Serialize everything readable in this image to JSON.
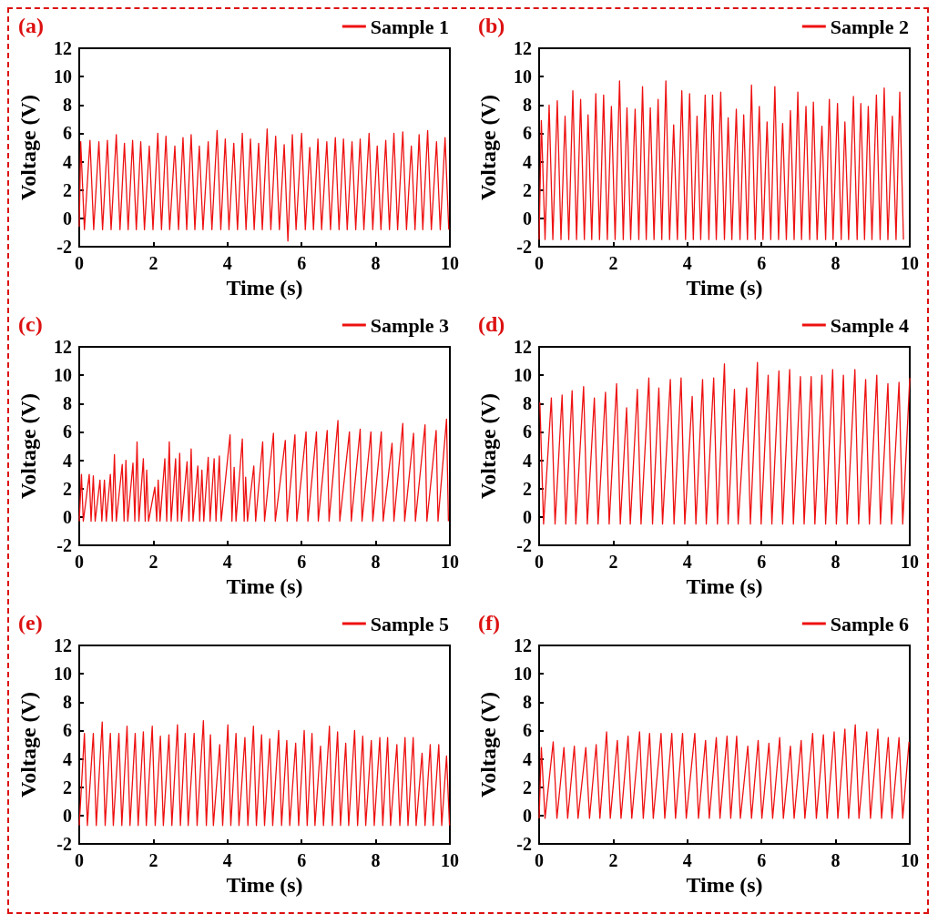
{
  "chart_data": [
    {
      "type": "line",
      "title": "(a)",
      "xlabel": "Time (s)",
      "ylabel": "Voltage (V)",
      "xlim": [
        0,
        10
      ],
      "ylim": [
        -2,
        12
      ],
      "xticks": [
        0,
        2,
        4,
        6,
        8,
        10
      ],
      "yticks": [
        -2,
        0,
        2,
        4,
        6,
        8,
        10,
        12
      ],
      "legend": "top right",
      "series": [
        {
          "name": "Sample 1",
          "color": "#ee1111",
          "x": [
            0,
            0.04,
            0.14,
            0.29,
            0.39,
            0.53,
            0.63,
            0.76,
            0.86,
            1.0,
            1.1,
            1.22,
            1.32,
            1.44,
            1.54,
            1.66,
            1.76,
            1.89,
            1.99,
            2.12,
            2.22,
            2.34,
            2.44,
            2.58,
            2.68,
            2.8,
            2.9,
            3.02,
            3.12,
            3.24,
            3.34,
            3.48,
            3.58,
            3.72,
            3.82,
            3.94,
            4.04,
            4.17,
            4.27,
            4.4,
            4.5,
            4.62,
            4.72,
            4.84,
            4.94,
            5.07,
            5.17,
            5.3,
            5.4,
            5.53,
            5.63,
            5.75,
            5.85,
            6.0,
            6.1,
            6.22,
            6.32,
            6.44,
            6.54,
            6.68,
            6.78,
            6.91,
            7.01,
            7.13,
            7.23,
            7.36,
            7.46,
            7.58,
            7.68,
            7.82,
            7.92,
            8.04,
            8.14,
            8.27,
            8.37,
            8.49,
            8.59,
            8.73,
            8.83,
            8.96,
            9.06,
            9.17,
            9.27,
            9.4,
            9.5,
            9.64,
            9.74,
            9.87,
            9.97
          ],
          "values": [
            -0.6,
            5.4,
            -0.8,
            5.5,
            -0.8,
            5.4,
            -0.8,
            5.5,
            -0.8,
            5.9,
            -0.8,
            5.3,
            -0.8,
            5.5,
            -0.8,
            5.4,
            -0.8,
            5.1,
            -0.8,
            6.0,
            -0.8,
            5.8,
            -0.8,
            5.1,
            -0.8,
            5.7,
            -0.8,
            5.9,
            -0.8,
            5.1,
            -0.8,
            5.4,
            -0.8,
            6.2,
            -0.8,
            5.6,
            -0.8,
            5.3,
            -0.8,
            6.0,
            -0.8,
            5.6,
            -0.8,
            5.3,
            -0.8,
            6.3,
            -0.8,
            5.8,
            -0.8,
            5.2,
            -1.6,
            5.9,
            -0.8,
            6.0,
            -0.8,
            5.0,
            -0.8,
            5.6,
            -0.8,
            5.4,
            -0.8,
            5.7,
            -0.8,
            5.6,
            -0.8,
            5.4,
            -0.8,
            5.6,
            -0.8,
            6.0,
            -0.8,
            5.1,
            -0.8,
            5.5,
            -0.8,
            6.0,
            -0.8,
            6.1,
            -0.8,
            5.1,
            -0.8,
            5.9,
            -0.8,
            6.2,
            -0.8,
            5.4,
            -0.8,
            5.7,
            -0.8
          ]
        }
      ]
    },
    {
      "type": "line",
      "title": "(b)",
      "xlabel": "Time (s)",
      "ylabel": "Voltage (V)",
      "xlim": [
        0,
        10
      ],
      "ylim": [
        -2,
        12
      ],
      "xticks": [
        0,
        2,
        4,
        6,
        8,
        10
      ],
      "yticks": [
        -2,
        0,
        2,
        4,
        6,
        8,
        10,
        12
      ],
      "legend": "top right",
      "series": [
        {
          "name": "Sample 2",
          "color": "#ee1111",
          "x": [
            0,
            0.06,
            0.16,
            0.27,
            0.37,
            0.49,
            0.59,
            0.7,
            0.8,
            0.91,
            1.01,
            1.12,
            1.22,
            1.32,
            1.42,
            1.53,
            1.63,
            1.74,
            1.84,
            1.95,
            2.05,
            2.17,
            2.27,
            2.37,
            2.47,
            2.59,
            2.69,
            2.79,
            2.89,
            3.0,
            3.1,
            3.21,
            3.31,
            3.42,
            3.52,
            3.63,
            3.73,
            3.85,
            3.95,
            4.06,
            4.16,
            4.26,
            4.36,
            4.48,
            4.58,
            4.68,
            4.78,
            4.9,
            5.0,
            5.1,
            5.2,
            5.32,
            5.42,
            5.52,
            5.62,
            5.73,
            5.83,
            5.94,
            6.04,
            6.15,
            6.25,
            6.36,
            6.46,
            6.57,
            6.67,
            6.78,
            6.88,
            6.98,
            7.08,
            7.2,
            7.3,
            7.4,
            7.5,
            7.63,
            7.73,
            7.83,
            7.93,
            8.05,
            8.15,
            8.25,
            8.35,
            8.48,
            8.58,
            8.68,
            8.78,
            8.88,
            8.98,
            9.1,
            9.2,
            9.31,
            9.41,
            9.53,
            9.63,
            9.73,
            9.83
          ],
          "values": [
            -1.5,
            6.9,
            -1.5,
            8.0,
            -1.5,
            8.3,
            -1.5,
            7.2,
            -1.5,
            9.0,
            -1.5,
            8.4,
            -1.5,
            7.3,
            -1.5,
            8.8,
            -1.5,
            8.7,
            -1.5,
            7.9,
            -1.5,
            9.7,
            -1.5,
            7.8,
            -1.5,
            7.7,
            -1.5,
            9.3,
            -1.5,
            7.8,
            -1.5,
            8.4,
            -1.5,
            9.7,
            -1.5,
            6.6,
            -1.5,
            9.0,
            -1.5,
            8.8,
            -1.5,
            7.2,
            -1.5,
            8.7,
            -1.5,
            8.7,
            -1.5,
            8.9,
            -1.5,
            7.1,
            -1.5,
            7.7,
            -1.5,
            7.3,
            -1.5,
            9.4,
            -1.5,
            7.9,
            -1.5,
            6.8,
            -1.5,
            9.3,
            -1.5,
            6.7,
            -1.5,
            7.6,
            -1.5,
            8.9,
            -1.5,
            7.9,
            -1.5,
            8.2,
            -1.5,
            6.5,
            -1.5,
            8.4,
            -1.5,
            8.1,
            -1.5,
            6.8,
            -1.5,
            8.6,
            -1.5,
            8.1,
            -1.5,
            7.9,
            -1.5,
            8.7,
            -1.5,
            9.2,
            -1.5,
            7.2,
            -1.5,
            8.9,
            -1.5
          ]
        }
      ]
    },
    {
      "type": "line",
      "title": "(c)",
      "xlabel": "Time (s)",
      "ylabel": "Voltage (V)",
      "xlim": [
        0,
        10
      ],
      "ylim": [
        -2,
        12
      ],
      "xticks": [
        0,
        2,
        4,
        6,
        8,
        10
      ],
      "yticks": [
        -2,
        0,
        2,
        4,
        6,
        8,
        10,
        12
      ],
      "legend": "top right",
      "series": [
        {
          "name": "Sample 3",
          "color": "#ee1111",
          "x": [
            0,
            0.06,
            0.11,
            0.27,
            0.32,
            0.38,
            0.43,
            0.56,
            0.61,
            0.68,
            0.73,
            0.84,
            0.89,
            0.95,
            1.0,
            1.16,
            1.21,
            1.26,
            1.31,
            1.45,
            1.5,
            1.56,
            1.61,
            1.73,
            1.78,
            1.82,
            1.87,
            2.04,
            2.09,
            2.13,
            2.18,
            2.31,
            2.36,
            2.43,
            2.48,
            2.6,
            2.65,
            2.71,
            2.76,
            2.91,
            2.96,
            3.02,
            3.07,
            3.2,
            3.25,
            3.31,
            3.36,
            3.48,
            3.53,
            3.64,
            3.69,
            3.78,
            3.83,
            4.07,
            4.12,
            4.18,
            4.23,
            4.4,
            4.45,
            4.49,
            4.54,
            4.71,
            4.76,
            4.95,
            5.0,
            5.24,
            5.29,
            5.56,
            5.61,
            5.82,
            5.87,
            6.12,
            6.17,
            6.4,
            6.45,
            6.69,
            6.74,
            6.98,
            7.03,
            7.29,
            7.34,
            7.58,
            7.63,
            7.87,
            7.92,
            8.15,
            8.2,
            8.44,
            8.49,
            8.73,
            8.78,
            9.02,
            9.07,
            9.33,
            9.38,
            9.63,
            9.68,
            9.91,
            9.96
          ],
          "values": [
            -0.3,
            3.0,
            -0.3,
            3.0,
            -0.3,
            2.9,
            -0.3,
            2.6,
            -0.3,
            2.6,
            -0.3,
            3.0,
            -0.3,
            4.4,
            -0.3,
            3.7,
            -0.3,
            4.0,
            -0.3,
            3.8,
            -0.3,
            5.3,
            -0.3,
            4.1,
            -0.3,
            3.3,
            -0.3,
            2.1,
            -0.3,
            2.6,
            -0.3,
            4.1,
            -0.3,
            5.3,
            -0.3,
            4.1,
            -0.3,
            4.5,
            -0.3,
            3.9,
            -0.3,
            4.8,
            -0.3,
            3.6,
            -0.3,
            3.3,
            -0.3,
            4.2,
            -0.3,
            4.1,
            -0.3,
            4.3,
            -0.3,
            5.8,
            -0.3,
            3.5,
            -0.3,
            5.5,
            -0.3,
            2.8,
            -0.3,
            3.6,
            -0.3,
            5.3,
            -0.3,
            5.9,
            -0.3,
            5.4,
            -0.3,
            5.8,
            -0.3,
            6.0,
            -0.3,
            6.0,
            -0.3,
            6.1,
            -0.3,
            6.8,
            -0.3,
            6.0,
            -0.3,
            6.2,
            -0.3,
            6.0,
            -0.3,
            6.0,
            -0.3,
            5.2,
            -0.3,
            6.6,
            -0.3,
            5.9,
            -0.3,
            6.5,
            -0.3,
            6.1,
            -0.3,
            6.9,
            -0.3
          ]
        }
      ]
    },
    {
      "type": "line",
      "title": "(d)",
      "xlabel": "Time (s)",
      "ylabel": "Voltage (V)",
      "xlim": [
        0,
        10
      ],
      "ylim": [
        -2,
        12
      ],
      "xticks": [
        0,
        2,
        4,
        6,
        8,
        10
      ],
      "yticks": [
        -2,
        0,
        2,
        4,
        6,
        8,
        10,
        12
      ],
      "legend": "top right",
      "series": [
        {
          "name": "Sample 4",
          "color": "#ee1111",
          "x": [
            0.02,
            0.12,
            0.33,
            0.43,
            0.62,
            0.72,
            0.89,
            0.99,
            1.2,
            1.3,
            1.49,
            1.59,
            1.79,
            1.89,
            2.09,
            2.19,
            2.36,
            2.46,
            2.65,
            2.75,
            2.96,
            3.06,
            3.23,
            3.33,
            3.54,
            3.64,
            3.83,
            3.93,
            4.13,
            4.23,
            4.41,
            4.51,
            4.71,
            4.81,
            5.0,
            5.1,
            5.27,
            5.37,
            5.6,
            5.7,
            5.89,
            5.99,
            6.18,
            6.28,
            6.47,
            6.57,
            6.76,
            6.86,
            7.05,
            7.15,
            7.34,
            7.44,
            7.63,
            7.73,
            7.92,
            8.02,
            8.21,
            8.31,
            8.52,
            8.62,
            8.81,
            8.91,
            9.11,
            9.21,
            9.41,
            9.51,
            9.71,
            9.81,
            10.0
          ],
          "values": [
            8.1,
            -0.5,
            8.4,
            -0.5,
            8.6,
            -0.5,
            8.9,
            -0.5,
            9.2,
            -0.5,
            8.4,
            -0.5,
            8.8,
            -0.5,
            9.4,
            -0.5,
            7.7,
            -0.5,
            9.0,
            -0.5,
            9.8,
            -0.5,
            9.1,
            -0.5,
            9.7,
            -0.5,
            9.8,
            -0.5,
            8.5,
            -0.5,
            9.7,
            -0.5,
            9.8,
            -0.5,
            10.8,
            -0.5,
            9.0,
            -0.5,
            9.1,
            -0.5,
            10.9,
            -0.5,
            10.0,
            -0.5,
            10.3,
            -0.5,
            10.4,
            -0.5,
            9.9,
            -0.5,
            9.9,
            -0.5,
            10.0,
            -0.5,
            10.4,
            -0.5,
            10.0,
            -0.5,
            10.4,
            -0.5,
            9.7,
            -0.5,
            10.0,
            -0.5,
            9.4,
            -0.5,
            9.5,
            -0.5,
            9.8
          ]
        }
      ]
    },
    {
      "type": "line",
      "title": "(e)",
      "xlabel": "Time (s)",
      "ylabel": "Voltage (V)",
      "xlim": [
        0,
        10
      ],
      "ylim": [
        -2,
        12
      ],
      "xticks": [
        0,
        2,
        4,
        6,
        8,
        10
      ],
      "yticks": [
        -2,
        0,
        2,
        4,
        6,
        8,
        10,
        12
      ],
      "legend": "top right",
      "series": [
        {
          "name": "Sample 5",
          "color": "#ee1111",
          "x": [
            0,
            0.14,
            0.22,
            0.38,
            0.46,
            0.62,
            0.7,
            0.84,
            0.92,
            1.07,
            1.15,
            1.29,
            1.37,
            1.51,
            1.59,
            1.73,
            1.81,
            1.97,
            2.05,
            2.19,
            2.27,
            2.42,
            2.5,
            2.65,
            2.73,
            2.86,
            2.94,
            3.1,
            3.18,
            3.35,
            3.43,
            3.54,
            3.62,
            3.79,
            3.87,
            4.01,
            4.09,
            4.23,
            4.31,
            4.47,
            4.55,
            4.7,
            4.78,
            4.92,
            5.0,
            5.14,
            5.22,
            5.38,
            5.46,
            5.6,
            5.68,
            5.84,
            5.92,
            6.07,
            6.15,
            6.28,
            6.36,
            6.51,
            6.59,
            6.75,
            6.83,
            6.97,
            7.05,
            7.19,
            7.27,
            7.43,
            7.51,
            7.65,
            7.73,
            7.88,
            7.96,
            8.11,
            8.19,
            8.32,
            8.4,
            8.57,
            8.65,
            8.79,
            8.87,
            9.01,
            9.09,
            9.25,
            9.33,
            9.47,
            9.55,
            9.7,
            9.78,
            9.91,
            9.99
          ],
          "values": [
            -0.7,
            5.8,
            -0.7,
            5.8,
            -0.7,
            6.6,
            -0.7,
            5.8,
            -0.7,
            5.8,
            -0.7,
            6.3,
            -0.7,
            5.8,
            -0.7,
            5.9,
            -0.7,
            6.3,
            -0.7,
            5.6,
            -0.7,
            5.7,
            -0.7,
            6.4,
            -0.7,
            5.8,
            -0.7,
            5.8,
            -0.7,
            6.7,
            -0.7,
            5.7,
            -0.7,
            5.0,
            -0.7,
            6.4,
            -0.7,
            5.8,
            -0.7,
            5.5,
            -0.7,
            6.3,
            -0.7,
            5.7,
            -0.7,
            5.4,
            -0.7,
            6.0,
            -0.7,
            5.3,
            -0.7,
            5.1,
            -0.7,
            6.0,
            -0.7,
            5.8,
            -0.7,
            4.9,
            -0.7,
            6.3,
            -0.7,
            5.9,
            -0.7,
            5.1,
            -0.7,
            6.0,
            -0.7,
            5.6,
            -0.7,
            5.3,
            -0.7,
            5.5,
            -0.7,
            5.5,
            -0.7,
            5.0,
            -0.7,
            5.5,
            -0.7,
            5.5,
            -0.7,
            4.4,
            -0.7,
            5.0,
            -0.7,
            5.0,
            -0.7,
            4.2,
            -0.7
          ]
        }
      ]
    },
    {
      "type": "line",
      "title": "(f)",
      "xlabel": "Time (s)",
      "ylabel": "Voltage (V)",
      "xlim": [
        0,
        10
      ],
      "ylim": [
        -2,
        12
      ],
      "xticks": [
        0,
        2,
        4,
        6,
        8,
        10
      ],
      "yticks": [
        -2,
        0,
        2,
        4,
        6,
        8,
        10,
        12
      ],
      "legend": "top right",
      "series": [
        {
          "name": "Sample 6",
          "color": "#ee1111",
          "x": [
            0,
            0.06,
            0.16,
            0.38,
            0.48,
            0.67,
            0.77,
            0.95,
            1.05,
            1.26,
            1.36,
            1.54,
            1.64,
            1.82,
            1.92,
            2.11,
            2.21,
            2.4,
            2.5,
            2.71,
            2.81,
            2.98,
            3.08,
            3.29,
            3.39,
            3.58,
            3.68,
            3.87,
            3.97,
            4.2,
            4.3,
            4.49,
            4.59,
            4.78,
            4.88,
            5.07,
            5.17,
            5.33,
            5.43,
            5.63,
            5.73,
            5.91,
            6.01,
            6.2,
            6.3,
            6.49,
            6.59,
            6.78,
            6.88,
            7.07,
            7.17,
            7.38,
            7.48,
            7.67,
            7.77,
            7.96,
            8.06,
            8.25,
            8.35,
            8.53,
            8.63,
            8.84,
            8.94,
            9.14,
            9.24,
            9.42,
            9.52,
            9.71,
            9.81,
            9.98
          ],
          "values": [
            -0.2,
            4.8,
            -0.2,
            5.2,
            -0.2,
            4.8,
            -0.2,
            4.9,
            -0.2,
            4.8,
            -0.2,
            5.0,
            -0.2,
            5.9,
            -0.2,
            5.3,
            -0.2,
            5.6,
            -0.2,
            5.9,
            -0.2,
            5.8,
            -0.2,
            5.8,
            -0.2,
            5.8,
            -0.2,
            5.8,
            -0.2,
            5.8,
            -0.2,
            5.3,
            -0.2,
            5.5,
            -0.2,
            5.6,
            -0.2,
            5.6,
            -0.2,
            4.9,
            -0.2,
            5.3,
            -0.2,
            5.1,
            -0.2,
            5.5,
            -0.2,
            4.9,
            -0.2,
            5.3,
            -0.2,
            5.8,
            -0.2,
            5.7,
            -0.2,
            5.9,
            -0.2,
            6.1,
            -0.2,
            6.4,
            -0.2,
            5.9,
            -0.2,
            6.1,
            -0.2,
            5.5,
            -0.2,
            5.5,
            -0.2,
            5.2
          ]
        }
      ]
    }
  ]
}
